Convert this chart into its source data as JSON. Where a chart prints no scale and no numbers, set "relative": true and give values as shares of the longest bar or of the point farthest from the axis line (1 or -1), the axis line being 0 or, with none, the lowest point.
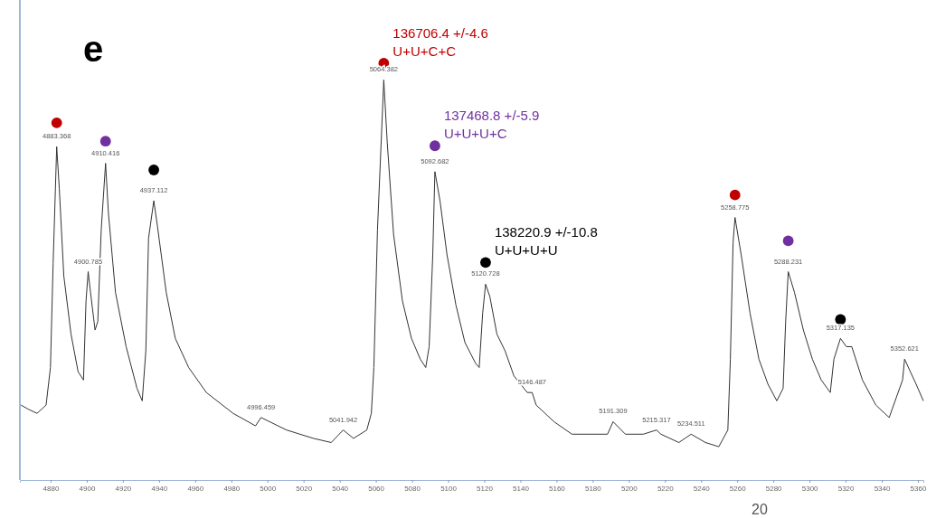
{
  "chart_data": {
    "type": "line",
    "title": "e",
    "relative": true,
    "grid": false,
    "legend": false,
    "xlim": [
      4863,
      5363
    ],
    "xticks": [
      4880,
      4900,
      4920,
      4940,
      4960,
      4980,
      5000,
      5020,
      5040,
      5060,
      5080,
      5100,
      5120,
      5140,
      5160,
      5180,
      5200,
      5220,
      5240,
      5260,
      5280,
      5300,
      5320,
      5340,
      5360
    ],
    "series": [
      {
        "color": "#333333",
        "marker": "none",
        "line_style": "solid",
        "x": [
          4863.6,
          4867.6,
          4872.5,
          4877.5,
          4879.9,
          4881.4,
          4883.368,
          4884.8,
          4887.3,
          4891.3,
          4895.2,
          4898.2,
          4899.6,
          4900.785,
          4902.1,
          4904.6,
          4906.1,
          4908.0,
          4910.416,
          4912.0,
          4915.9,
          4921.8,
          4927.8,
          4930.7,
          4932.7,
          4934.2,
          4937.112,
          4939.1,
          4944.0,
          4949.0,
          4956.4,
          4966.2,
          4981.0,
          4993.4,
          4996.459,
          5010.6,
          5025.4,
          5035.3,
          5041.942,
          5047.6,
          5055.0,
          5057.5,
          5058.9,
          5060.9,
          5064.382,
          5066.3,
          5069.8,
          5074.7,
          5079.7,
          5084.6,
          5087.6,
          5089.5,
          5091.5,
          5092.682,
          5095.5,
          5099.4,
          5104.3,
          5109.3,
          5115.2,
          5117.2,
          5119.1,
          5120.728,
          5123.1,
          5127.0,
          5131.5,
          5136.4,
          5143.8,
          5146.487,
          5148.7,
          5158.6,
          5168.5,
          5178.3,
          5188.2,
          5191.309,
          5198.1,
          5208.0,
          5215.317,
          5217.8,
          5227.7,
          5234.511,
          5242.4,
          5249.8,
          5254.8,
          5256.2,
          5257.7,
          5258.775,
          5262.2,
          5267.1,
          5272.0,
          5277.0,
          5281.9,
          5285.4,
          5286.8,
          5288.231,
          5291.7,
          5296.6,
          5301.6,
          5306.5,
          5311.5,
          5313.5,
          5317.135,
          5320.4,
          5323.4,
          5329.3,
          5336.7,
          5344.1,
          5351.5,
          5352.621,
          5359.0,
          5363.0
        ],
        "values": [
          0.18,
          0.17,
          0.16,
          0.18,
          0.27,
          0.52,
          0.8,
          0.7,
          0.49,
          0.35,
          0.26,
          0.24,
          0.43,
          0.5,
          0.45,
          0.36,
          0.38,
          0.6,
          0.76,
          0.64,
          0.45,
          0.32,
          0.22,
          0.19,
          0.31,
          0.58,
          0.67,
          0.61,
          0.45,
          0.34,
          0.27,
          0.21,
          0.16,
          0.13,
          0.15,
          0.12,
          0.1,
          0.09,
          0.12,
          0.1,
          0.12,
          0.16,
          0.27,
          0.6,
          0.96,
          0.81,
          0.59,
          0.43,
          0.34,
          0.29,
          0.27,
          0.32,
          0.54,
          0.74,
          0.67,
          0.54,
          0.42,
          0.33,
          0.28,
          0.27,
          0.4,
          0.47,
          0.44,
          0.35,
          0.31,
          0.25,
          0.21,
          0.21,
          0.18,
          0.14,
          0.11,
          0.11,
          0.11,
          0.14,
          0.11,
          0.11,
          0.12,
          0.11,
          0.09,
          0.11,
          0.09,
          0.08,
          0.12,
          0.29,
          0.57,
          0.63,
          0.54,
          0.4,
          0.29,
          0.23,
          0.19,
          0.22,
          0.38,
          0.5,
          0.45,
          0.36,
          0.29,
          0.24,
          0.21,
          0.29,
          0.34,
          0.32,
          0.32,
          0.24,
          0.18,
          0.15,
          0.24,
          0.29,
          0.23,
          0.19
        ]
      },
      {
        "type": "scatter",
        "name": "136706.4 +/-4.6\nU+U+C+C",
        "color": "#c00000",
        "marker": "circle",
        "x": [
          4883.368,
          5064.382,
          5258.775
        ],
        "values": [
          0.857,
          1.0,
          0.684
        ]
      },
      {
        "type": "scatter",
        "name": "137468.8 +/-5.9\nU+U+U+C",
        "color": "#7030a0",
        "marker": "circle",
        "x": [
          4910.416,
          5092.682,
          5288.231
        ],
        "values": [
          0.813,
          0.802,
          0.574
        ]
      },
      {
        "type": "scatter",
        "name": "138220.9 +/-10.8\nU+U+U+U",
        "color": "#000000",
        "marker": "circle",
        "x": [
          4937.112,
          5120.728,
          5317.135
        ],
        "values": [
          0.744,
          0.522,
          0.385
        ]
      }
    ],
    "annotations": [
      {
        "text": "4883.368",
        "x": 4883.368,
        "y": 0.8
      },
      {
        "text": "4900.785",
        "x": 4900.785,
        "y": 0.5
      },
      {
        "text": "4910.416",
        "x": 4910.416,
        "y": 0.76
      },
      {
        "text": "4937.112",
        "x": 4937.112,
        "y": 0.67
      },
      {
        "text": "4996.459",
        "x": 4996.459,
        "y": 0.15
      },
      {
        "text": "5041.942",
        "x": 5041.942,
        "y": 0.12
      },
      {
        "text": "5064.382",
        "x": 5064.382,
        "y": 0.96
      },
      {
        "text": "5092.682",
        "x": 5092.682,
        "y": 0.74
      },
      {
        "text": "5120.728",
        "x": 5120.728,
        "y": 0.47
      },
      {
        "text": "5146.487",
        "x": 5146.487,
        "y": 0.21
      },
      {
        "text": "5191.309",
        "x": 5191.309,
        "y": 0.14
      },
      {
        "text": "5215.317",
        "x": 5215.317,
        "y": 0.12
      },
      {
        "text": "5234.511",
        "x": 5234.511,
        "y": 0.11
      },
      {
        "text": "5258.775",
        "x": 5258.775,
        "y": 0.63
      },
      {
        "text": "5288.231",
        "x": 5288.231,
        "y": 0.5
      },
      {
        "text": "5317.135",
        "x": 5317.135,
        "y": 0.34
      },
      {
        "text": "5352.621",
        "x": 5352.621,
        "y": 0.29
      },
      "20"
    ]
  }
}
